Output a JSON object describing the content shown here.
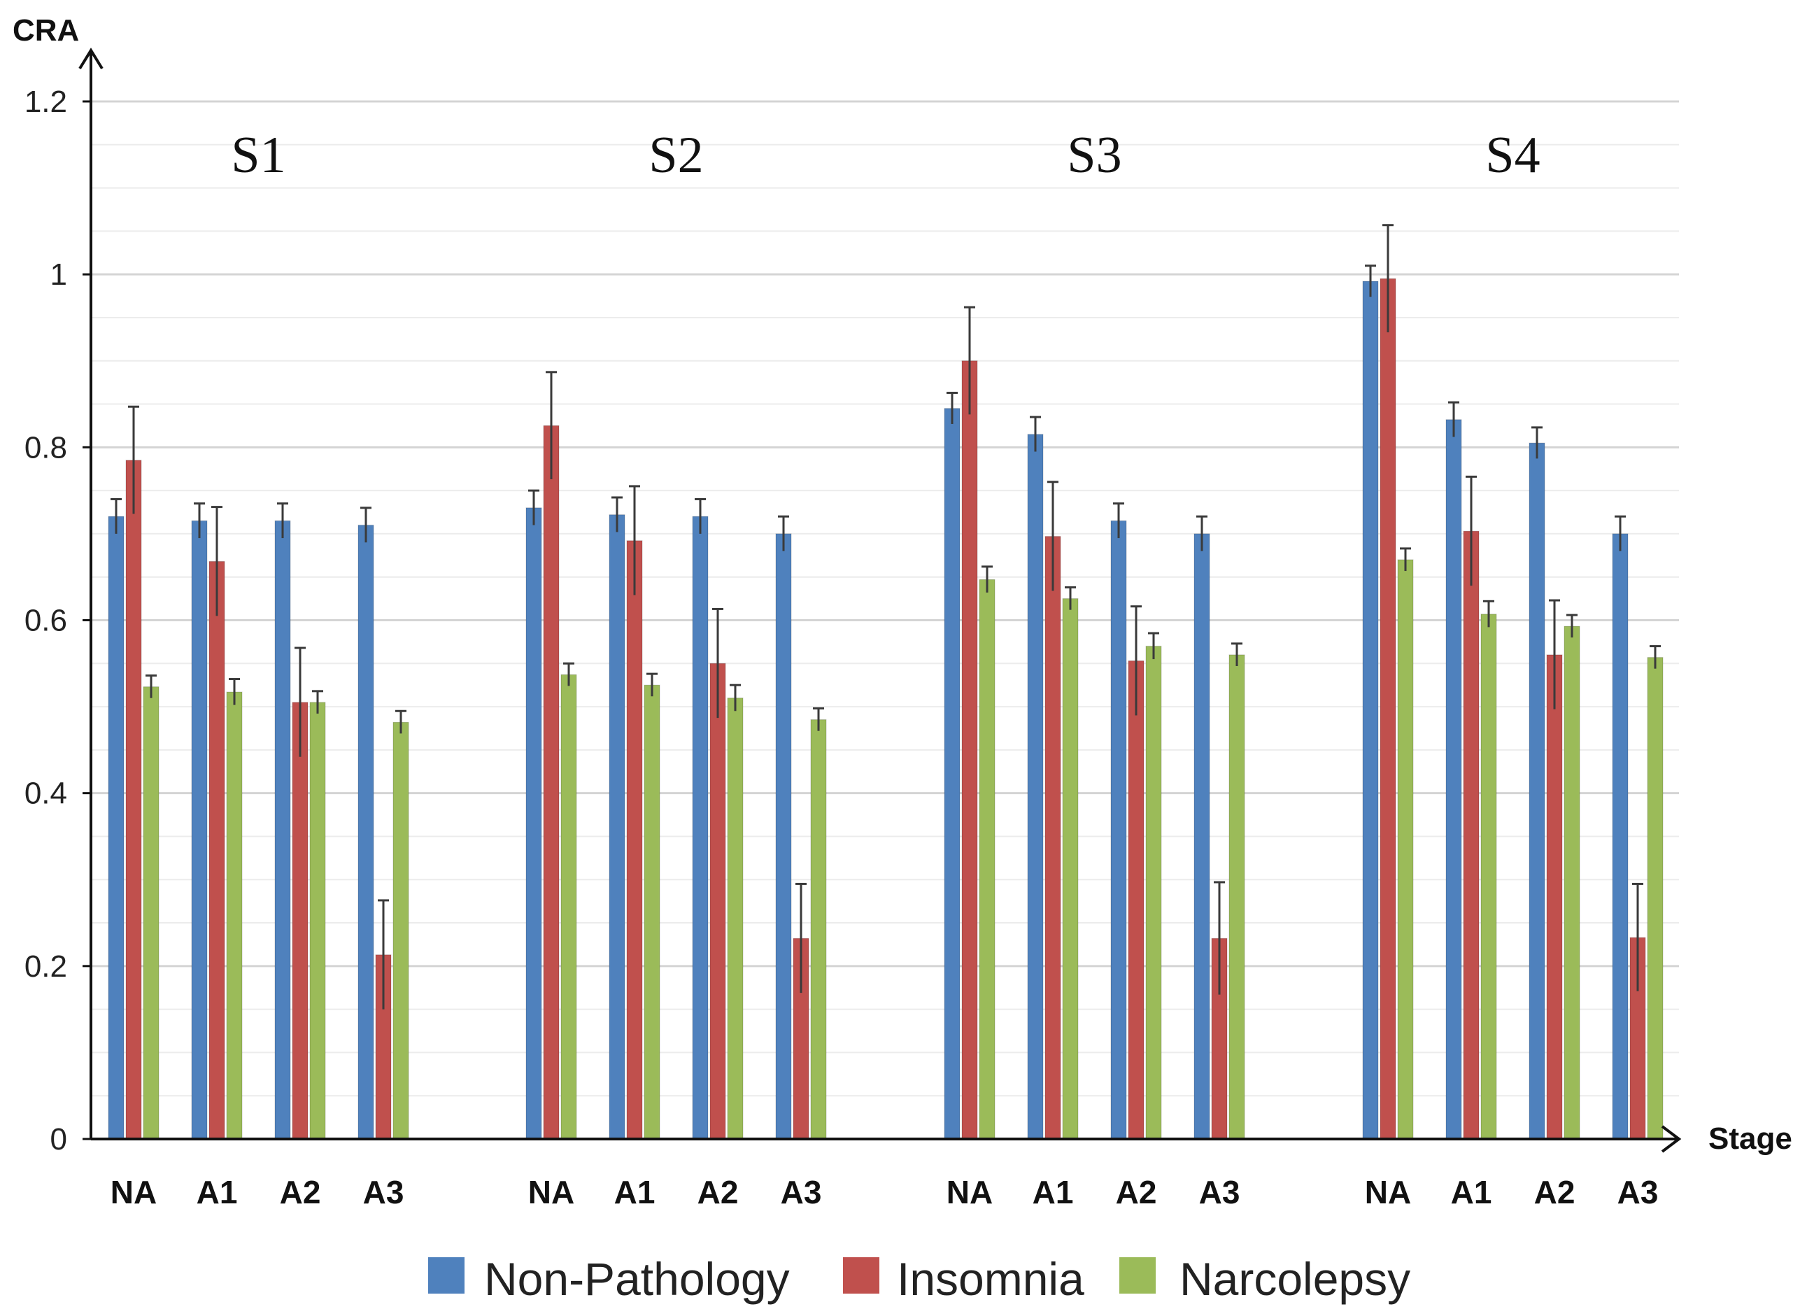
{
  "chart_data": {
    "type": "bar",
    "ylabel": "CRA",
    "xlabel": "Stage",
    "ylim": [
      0,
      1.2
    ],
    "yticks": [
      "0",
      "0.2",
      "0.4",
      "0.6",
      "0.8",
      "1",
      "1.2"
    ],
    "grid": true,
    "legend_position": "bottom",
    "groups": [
      {
        "title": "S1",
        "categories": [
          "NA",
          "A1",
          "A2",
          "A3"
        ]
      },
      {
        "title": "S2",
        "categories": [
          "NA",
          "A1",
          "A2",
          "A3"
        ]
      },
      {
        "title": "S3",
        "categories": [
          "NA",
          "A1",
          "A2",
          "A3"
        ]
      },
      {
        "title": "S4",
        "categories": [
          "NA",
          "A1",
          "A2",
          "A3"
        ]
      }
    ],
    "series": [
      {
        "name": "Non-Pathology",
        "color": "#4f81bd",
        "values": [
          [
            0.72,
            0.715,
            0.715,
            0.71
          ],
          [
            0.73,
            0.722,
            0.72,
            0.7
          ],
          [
            0.845,
            0.815,
            0.715,
            0.7
          ],
          [
            0.992,
            0.832,
            0.805,
            0.7
          ]
        ],
        "errors": [
          [
            0.02,
            0.02,
            0.02,
            0.02
          ],
          [
            0.02,
            0.02,
            0.02,
            0.02
          ],
          [
            0.018,
            0.02,
            0.02,
            0.02
          ],
          [
            0.018,
            0.02,
            0.018,
            0.02
          ]
        ]
      },
      {
        "name": "Insomnia",
        "color": "#c0504d",
        "values": [
          [
            0.785,
            0.668,
            0.505,
            0.213
          ],
          [
            0.825,
            0.692,
            0.55,
            0.232
          ],
          [
            0.9,
            0.697,
            0.553,
            0.232
          ],
          [
            0.995,
            0.703,
            0.56,
            0.233
          ]
        ],
        "errors": [
          [
            0.062,
            0.063,
            0.063,
            0.063
          ],
          [
            0.062,
            0.063,
            0.063,
            0.063
          ],
          [
            0.062,
            0.063,
            0.063,
            0.065
          ],
          [
            0.062,
            0.063,
            0.063,
            0.062
          ]
        ]
      },
      {
        "name": "Narcolepsy",
        "color": "#9bbb59",
        "values": [
          [
            0.523,
            0.517,
            0.505,
            0.482
          ],
          [
            0.537,
            0.525,
            0.51,
            0.485
          ],
          [
            0.647,
            0.625,
            0.57,
            0.56
          ],
          [
            0.67,
            0.607,
            0.593,
            0.557
          ]
        ],
        "errors": [
          [
            0.013,
            0.015,
            0.013,
            0.013
          ],
          [
            0.013,
            0.013,
            0.015,
            0.013
          ],
          [
            0.015,
            0.013,
            0.015,
            0.013
          ],
          [
            0.013,
            0.015,
            0.013,
            0.013
          ]
        ]
      }
    ]
  }
}
